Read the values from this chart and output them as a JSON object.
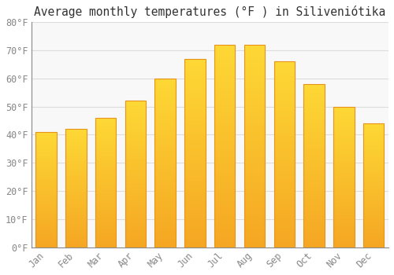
{
  "title": "Average monthly temperatures (°F ) in Siliveniótika",
  "months": [
    "Jan",
    "Feb",
    "Mar",
    "Apr",
    "May",
    "Jun",
    "Jul",
    "Aug",
    "Sep",
    "Oct",
    "Nov",
    "Dec"
  ],
  "values": [
    41,
    42,
    46,
    52,
    60,
    67,
    72,
    72,
    66,
    58,
    50,
    44
  ],
  "bar_color_bottom": "#F5A623",
  "bar_color_top": "#FDD835",
  "bar_edge_color": "#E8941A",
  "background_color": "#FFFFFF",
  "plot_bg_color": "#F8F8F8",
  "grid_color": "#DDDDDD",
  "ylim": [
    0,
    80
  ],
  "yticks": [
    0,
    10,
    20,
    30,
    40,
    50,
    60,
    70,
    80
  ],
  "title_fontsize": 10.5,
  "tick_fontsize": 8.5,
  "font_family": "monospace",
  "tick_color": "#888888",
  "spine_color": "#888888"
}
